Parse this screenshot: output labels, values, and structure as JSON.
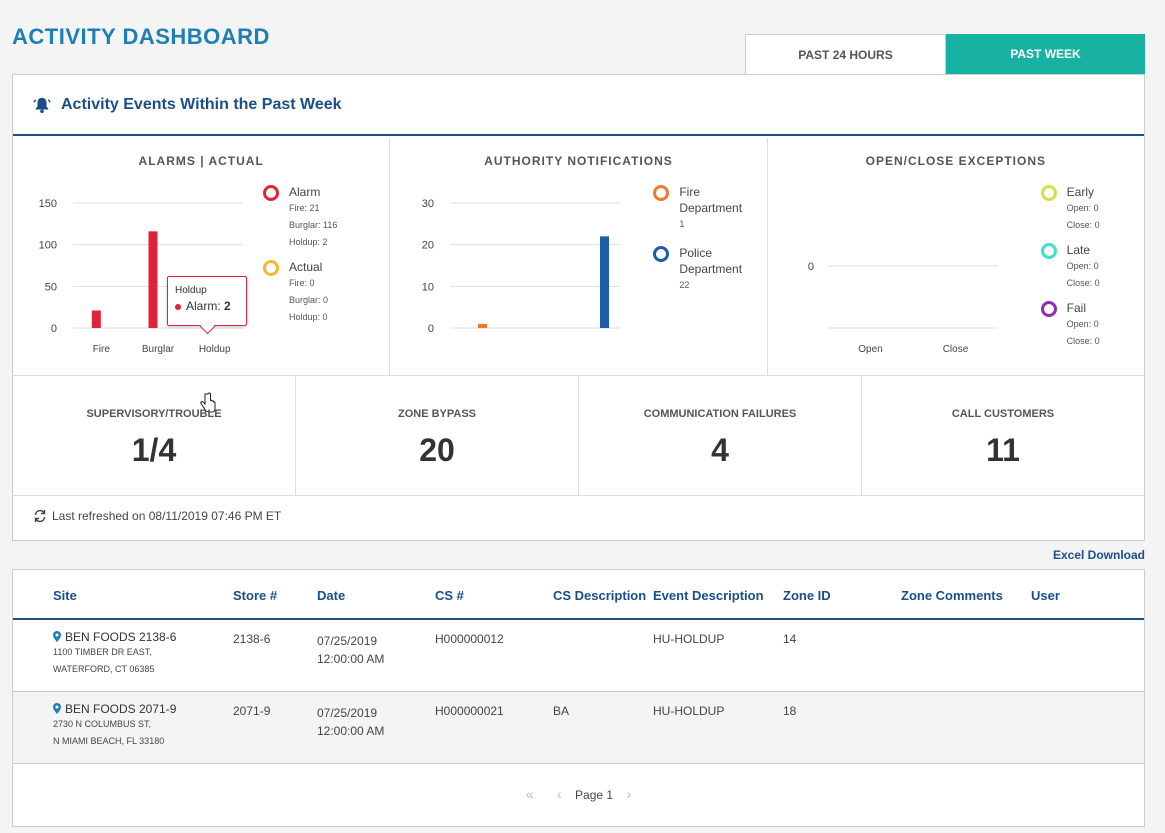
{
  "page_title": "ACTIVITY DASHBOARD",
  "tabs": [
    {
      "label": "PAST 24 HOURS",
      "active": false
    },
    {
      "label": "PAST WEEK",
      "active": true
    }
  ],
  "colors": {
    "accent": "#17b2a2",
    "brand": "#1e7fb5",
    "navy": "#1a4f8a",
    "alarm": "#e0233c",
    "actual": "#f5b82e",
    "fire_dept": "#ee7a30",
    "police_dept": "#1c5ea5",
    "early": "#d4e04a",
    "late": "#3fe0d0",
    "fail": "#8b2fb0"
  },
  "card": {
    "icon": "bell-icon",
    "title": "Activity Events Within the Past Week"
  },
  "charts": {
    "alarms": {
      "title": "ALARMS | ACTUAL",
      "legend": [
        {
          "name": "Alarm",
          "lines": [
            "Fire: 21",
            "Burglar: 116",
            "Holdup: 2"
          ]
        },
        {
          "name": "Actual",
          "lines": [
            "Fire: 0",
            "Burglar: 0",
            "Holdup: 0"
          ]
        }
      ],
      "tooltip": {
        "title": "Holdup",
        "series": "Alarm:",
        "value": "2"
      }
    },
    "authority": {
      "title": "AUTHORITY NOTIFICATIONS",
      "legend": [
        {
          "name": "Fire Department",
          "lines": [
            "1"
          ]
        },
        {
          "name": "Police Department",
          "lines": [
            "22"
          ]
        }
      ]
    },
    "openclose": {
      "title": "OPEN/CLOSE EXCEPTIONS",
      "legend": [
        {
          "name": "Early",
          "lines": [
            "Open: 0",
            "Close: 0"
          ]
        },
        {
          "name": "Late",
          "lines": [
            "Open: 0",
            "Close: 0"
          ]
        },
        {
          "name": "Fail",
          "lines": [
            "Open: 0",
            "Close: 0"
          ]
        }
      ]
    }
  },
  "chart_data": [
    {
      "type": "bar",
      "title": "ALARMS | ACTUAL",
      "categories": [
        "Fire",
        "Burglar",
        "Holdup"
      ],
      "series": [
        {
          "name": "Alarm",
          "values": [
            21,
            116,
            2
          ]
        },
        {
          "name": "Actual",
          "values": [
            0,
            0,
            0
          ]
        }
      ],
      "yticks": [
        0,
        50,
        100,
        150
      ],
      "ylim": [
        0,
        150
      ],
      "grid": true
    },
    {
      "type": "bar",
      "title": "AUTHORITY NOTIFICATIONS",
      "categories": [
        ""
      ],
      "series": [
        {
          "name": "Fire Department",
          "values": [
            1
          ]
        },
        {
          "name": "Police Department",
          "values": [
            22
          ]
        }
      ],
      "yticks": [
        0,
        10,
        20,
        30
      ],
      "ylim": [
        0,
        30
      ],
      "grid": true
    },
    {
      "type": "bar",
      "title": "OPEN/CLOSE EXCEPTIONS",
      "categories": [
        "Open",
        "Close"
      ],
      "series": [
        {
          "name": "Early",
          "values": [
            0,
            0
          ]
        },
        {
          "name": "Late",
          "values": [
            0,
            0
          ]
        },
        {
          "name": "Fail",
          "values": [
            0,
            0
          ]
        }
      ],
      "yticks": [
        0
      ],
      "grid": true
    }
  ],
  "stats": [
    {
      "label": "SUPERVISORY/TROUBLE",
      "value": "1/4"
    },
    {
      "label": "ZONE BYPASS",
      "value": "20"
    },
    {
      "label": "COMMUNICATION FAILURES",
      "value": "4"
    },
    {
      "label": "CALL CUSTOMERS",
      "value": "11"
    }
  ],
  "refresh_text": "Last refreshed on 08/11/2019 07:46 PM ET",
  "excel_download": "Excel Download",
  "table": {
    "columns": [
      "Site",
      "Store #",
      "Date",
      "CS #",
      "CS Description",
      "Event Description",
      "Zone ID",
      "Zone Comments",
      "User"
    ],
    "rows": [
      {
        "site_name": "BEN FOODS 2138-6",
        "site_addr1": "1100 TIMBER DR EAST,",
        "site_addr2": "WATERFORD, CT 06385",
        "store": "2138-6",
        "date1": "07/25/2019",
        "date2": "12:00:00 AM",
        "cs": "H000000012",
        "cs_desc": "",
        "event": "HU-HOLDUP",
        "zone_id": "14",
        "zone_comments": "",
        "user": ""
      },
      {
        "site_name": "BEN FOODS 2071-9",
        "site_addr1": "2730 N COLUMBUS ST,",
        "site_addr2": "N MIAMI BEACH, FL 33180",
        "store": "2071-9",
        "date1": "07/25/2019",
        "date2": "12:00:00 AM",
        "cs": "H000000021",
        "cs_desc": "BA",
        "event": "HU-HOLDUP",
        "zone_id": "18",
        "zone_comments": "",
        "user": ""
      }
    ]
  },
  "pager": {
    "label": "Page 1"
  }
}
